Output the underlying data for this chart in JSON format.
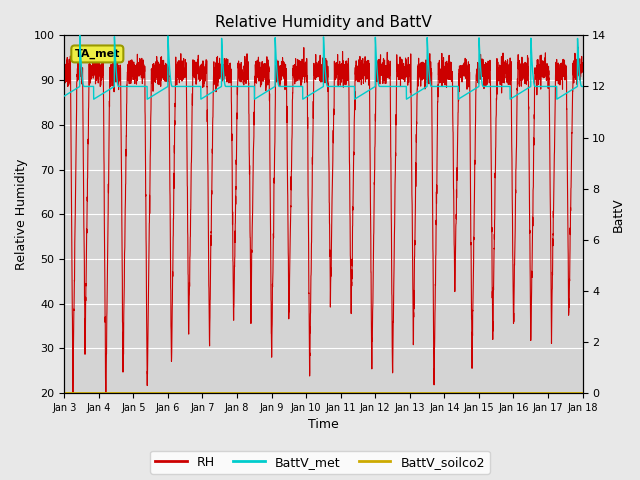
{
  "title": "Relative Humidity and BattV",
  "xlabel": "Time",
  "ylabel_left": "Relative Humidity",
  "ylabel_right": "BattV",
  "annotation": "TA_met",
  "xlim_start": 0,
  "xlim_end": 15,
  "ylim_left": [
    20,
    100
  ],
  "ylim_right": [
    0,
    14
  ],
  "x_ticks": [
    0,
    1,
    2,
    3,
    4,
    5,
    6,
    7,
    8,
    9,
    10,
    11,
    12,
    13,
    14,
    15
  ],
  "x_tick_labels": [
    "Jan 3",
    "Jan 4",
    "Jan 5",
    "Jan 6",
    "Jan 7",
    "Jan 8",
    "Jan 9",
    "Jan 10",
    "Jan 11",
    "Jan 12",
    "Jan 13",
    "Jan 14",
    "Jan 15",
    "Jan 16",
    "Jan 17",
    "Jan 18"
  ],
  "y_left_ticks": [
    20,
    30,
    40,
    50,
    60,
    70,
    80,
    90,
    100
  ],
  "y_right_ticks": [
    0,
    2,
    4,
    6,
    8,
    10,
    12,
    14
  ],
  "rh_color": "#cc0000",
  "battv_met_color": "#00cccc",
  "battv_soilco2_color": "#ccaa00",
  "bg_color": "#e8e8e8",
  "plot_bg_color": "#d4d4d4",
  "grid_color": "#ffffff",
  "legend_labels": [
    "RH",
    "BattV_met",
    "BattV_soilco2"
  ],
  "legend_colors": [
    "#cc0000",
    "#00cccc",
    "#ccaa00"
  ],
  "rh_dip_times": [
    0.25,
    0.6,
    1.2,
    1.7,
    2.4,
    3.1,
    3.6,
    4.2,
    4.9,
    5.4,
    6.0,
    6.5,
    7.1,
    7.7,
    8.3,
    8.9,
    9.5,
    10.1,
    10.7,
    11.3,
    11.8,
    12.4,
    13.0,
    13.5,
    14.1,
    14.6
  ],
  "rh_dip_depths": [
    72,
    62,
    75,
    67,
    71,
    66,
    60,
    62,
    57,
    53,
    65,
    55,
    68,
    51,
    56,
    68,
    69,
    60,
    71,
    50,
    67,
    60,
    58,
    62,
    59,
    56
  ],
  "battv_sawtooth_period": 1.1,
  "battv_base": 12.0,
  "battv_peak": 14.0
}
